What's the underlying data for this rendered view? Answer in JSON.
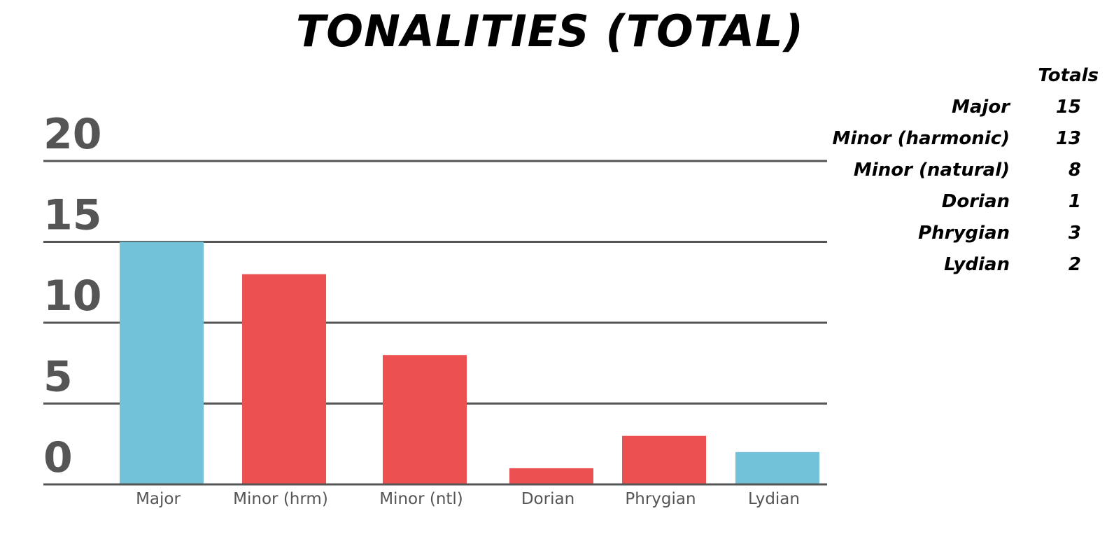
{
  "chart_data": {
    "type": "bar",
    "title": "TONALITIES (TOTAL)",
    "categories": [
      "Major",
      "Minor (hrm)",
      "Minor (ntl)",
      "Dorian",
      "Phrygian",
      "Lydian"
    ],
    "values": [
      15,
      13,
      8,
      1,
      3,
      2
    ],
    "colors": [
      "#72C3D9",
      "#EC5050",
      "#EC5050",
      "#EC5050",
      "#EC5050",
      "#72C3D9"
    ],
    "ylim": [
      0,
      20
    ],
    "yticks": [
      "0",
      "5",
      "10",
      "15",
      "20"
    ],
    "grid": true,
    "xlabel": "",
    "ylabel": ""
  },
  "totals_table": {
    "header": "Totals",
    "rows": [
      {
        "label": "Major",
        "value": "15"
      },
      {
        "label": "Minor (harmonic)",
        "value": "13"
      },
      {
        "label": "Minor (natural)",
        "value": "8"
      },
      {
        "label": "Dorian",
        "value": "1"
      },
      {
        "label": "Phrygian",
        "value": "3"
      },
      {
        "label": "Lydian",
        "value": "2"
      }
    ]
  }
}
